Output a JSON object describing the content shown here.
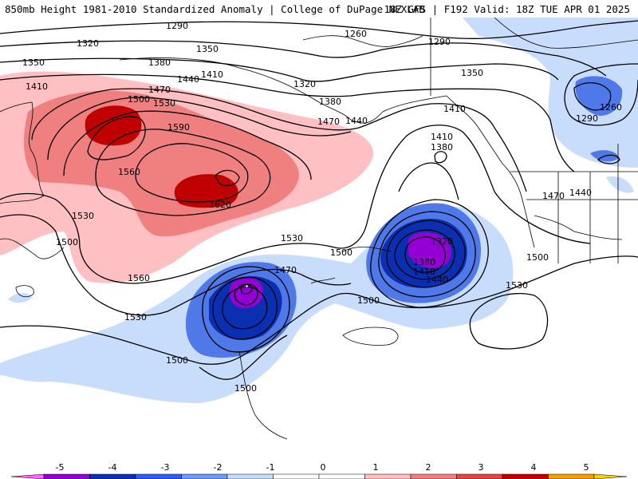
{
  "header": {
    "left": "850mb Height 1981-2010 Standardized Anomaly | College of DuPage NEXLAB",
    "right": "18Z GFS | F192 Valid: 18Z TUE APR 01 2025"
  },
  "contour_labels": [
    {
      "id": "l1290a",
      "text": "1290"
    },
    {
      "id": "l1320a",
      "text": "1320"
    },
    {
      "id": "l1350a",
      "text": "1350"
    },
    {
      "id": "l1350b",
      "text": "1350"
    },
    {
      "id": "l1380a",
      "text": "1380"
    },
    {
      "id": "l1410a",
      "text": "1410"
    },
    {
      "id": "l1410b",
      "text": "1410"
    },
    {
      "id": "l1440a",
      "text": "1440"
    },
    {
      "id": "l1470a",
      "text": "1470"
    },
    {
      "id": "l1500a",
      "text": "1500"
    },
    {
      "id": "l1530a",
      "text": "1530"
    },
    {
      "id": "l1590a",
      "text": "1590"
    },
    {
      "id": "l1560a",
      "text": "1560"
    },
    {
      "id": "l1620a",
      "text": "1620"
    },
    {
      "id": "l1530b",
      "text": "1530"
    },
    {
      "id": "l1500b",
      "text": "1500"
    },
    {
      "id": "l1560b",
      "text": "1560"
    },
    {
      "id": "l1530c",
      "text": "1530"
    },
    {
      "id": "l1530d",
      "text": "1530"
    },
    {
      "id": "l1260a",
      "text": "1260"
    },
    {
      "id": "l1290b",
      "text": "1290"
    },
    {
      "id": "l1320b",
      "text": "1320"
    },
    {
      "id": "l1350c",
      "text": "1350"
    },
    {
      "id": "l1380b",
      "text": "1380"
    },
    {
      "id": "l1410c",
      "text": "1410"
    },
    {
      "id": "l1440b",
      "text": "1440"
    },
    {
      "id": "l1470b",
      "text": "1470"
    },
    {
      "id": "l1500c",
      "text": "1500"
    },
    {
      "id": "l1410d",
      "text": "1410"
    },
    {
      "id": "l1380c",
      "text": "1380"
    },
    {
      "id": "l1320c",
      "text": "1320"
    },
    {
      "id": "l1380d",
      "text": "1380"
    },
    {
      "id": "l1410e",
      "text": "1410"
    },
    {
      "id": "l1440c",
      "text": "1440"
    },
    {
      "id": "l1500d",
      "text": "1500"
    },
    {
      "id": "l1500e",
      "text": "1500"
    },
    {
      "id": "l1530e",
      "text": "1530"
    },
    {
      "id": "l1470c",
      "text": "1470"
    },
    {
      "id": "l1440d",
      "text": "1440"
    },
    {
      "id": "l1260b",
      "text": "1260"
    },
    {
      "id": "l1290c",
      "text": "1290"
    },
    {
      "id": "l1470d",
      "text": "1470"
    },
    {
      "id": "l1500f",
      "text": "1500"
    },
    {
      "id": "l1500g",
      "text": "1500"
    }
  ],
  "colorbar": {
    "ticks": [
      "-5",
      "-4",
      "-3",
      "-2",
      "-1",
      "0",
      "1",
      "2",
      "3",
      "4",
      "5"
    ],
    "colors": [
      "#ff66ff",
      "#9400d3",
      "#0a2fb0",
      "#2f5fe8",
      "#6f9af5",
      "#c8dcfb",
      "#ffffff",
      "#ffffff",
      "#ffc0c4",
      "#f08080",
      "#e04848",
      "#c00000",
      "#f2a000",
      "#ffd000"
    ]
  }
}
